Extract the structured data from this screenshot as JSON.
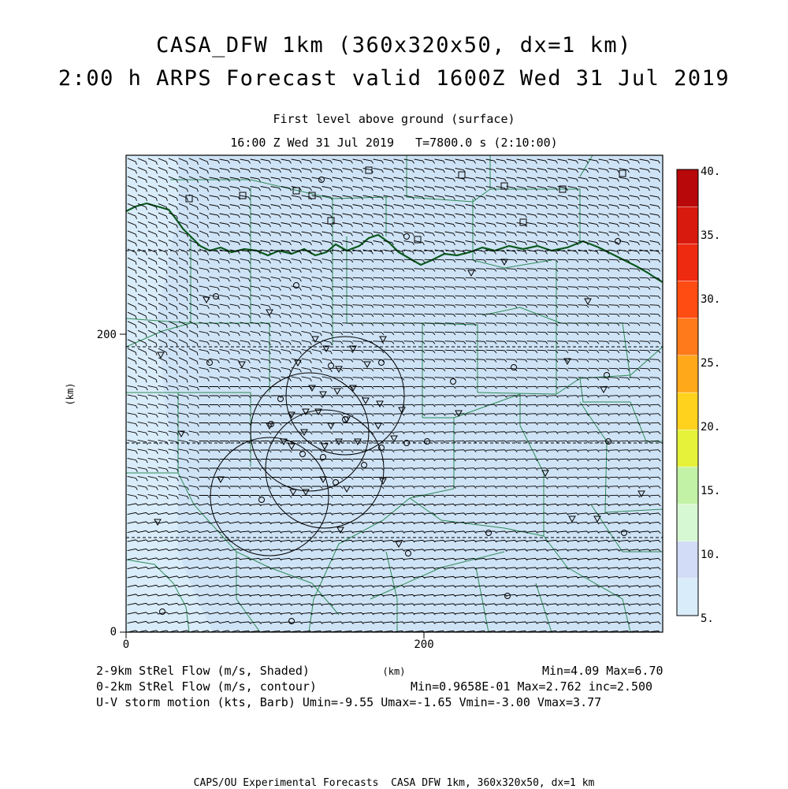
{
  "header": {
    "title_line1": "CASA_DFW 1km (360x320x50, dx=1 km)",
    "title_line2": "2:00 h ARPS Forecast valid 1600Z Wed 31 Jul 2019",
    "subtitle_level": "First level above ground (surface)",
    "subtitle_time": "16:00 Z Wed 31 Jul 2019   T=7800.0 s (2:10:00)"
  },
  "axes": {
    "y_label": "(km)",
    "x_label": "(km)",
    "x_ticks": [
      "0",
      "200"
    ],
    "y_ticks": [
      "0",
      "200"
    ]
  },
  "colorbar": {
    "levels": [
      "5.",
      "10.",
      "15.",
      "20.",
      "25.",
      "30.",
      "35.",
      "40."
    ],
    "colors": [
      "#d8ecfa",
      "#d2dcf6",
      "#d6f8d2",
      "#c2f2a6",
      "#e6f23a",
      "#ffd21e",
      "#ffa81a",
      "#ff7a1a",
      "#ff4c12",
      "#ee2a10",
      "#d81a0e",
      "#b8080a"
    ]
  },
  "legend": {
    "line1_left": "2-9km StRel Flow (m/s, Shaded)",
    "line1_right": "Min=4.09 Max=6.70",
    "line2_left": "0-2km StRel Flow (m/s, contour)",
    "line2_right": "Min=0.9658E-01 Max=2.762 inc=2.500",
    "line3": "U-V storm motion (kts, Barb) Umin=-9.55 Umax=-1.65 Vmin=-3.00 Vmax=3.77"
  },
  "footer": {
    "credit": "CAPS/OU Experimental Forecasts  CASA DFW 1km, 360x320x50, dx=1 km"
  },
  "map": {
    "shading_colors": {
      "low": "#d9ecfa",
      "base": "#cfe3f6"
    },
    "county_color": "#2e8b57",
    "state_border_color": "#0b5a1e"
  }
}
